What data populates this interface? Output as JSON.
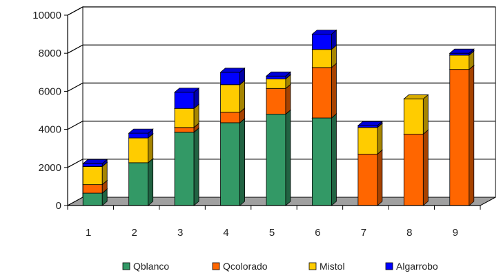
{
  "chart_data": {
    "type": "bar",
    "stacked": true,
    "three_d": true,
    "categories": [
      "1",
      "2",
      "3",
      "4",
      "5",
      "6",
      "7",
      "8",
      "9"
    ],
    "series": [
      {
        "name": "Qblanco",
        "color": "#339966",
        "values": [
          650,
          2250,
          3850,
          4350,
          4800,
          4600,
          0,
          0,
          0
        ]
      },
      {
        "name": "Qcolorado",
        "color": "#FF6600",
        "values": [
          450,
          0,
          250,
          550,
          1350,
          2650,
          2700,
          3750,
          7150
        ]
      },
      {
        "name": "Mistol",
        "color": "#FFCC00",
        "values": [
          950,
          1300,
          1000,
          1450,
          500,
          950,
          1400,
          1850,
          750
        ]
      },
      {
        "name": "Algarrobo",
        "color": "#0000FF",
        "values": [
          150,
          250,
          850,
          650,
          150,
          800,
          100,
          0,
          100
        ]
      }
    ],
    "y_ticks": [
      "0",
      "2000",
      "4000",
      "6000",
      "8000",
      "10000"
    ],
    "ylim": [
      0,
      10000
    ],
    "grid": true,
    "legend_position": "bottom",
    "title": "",
    "xlabel": "",
    "ylabel": ""
  }
}
